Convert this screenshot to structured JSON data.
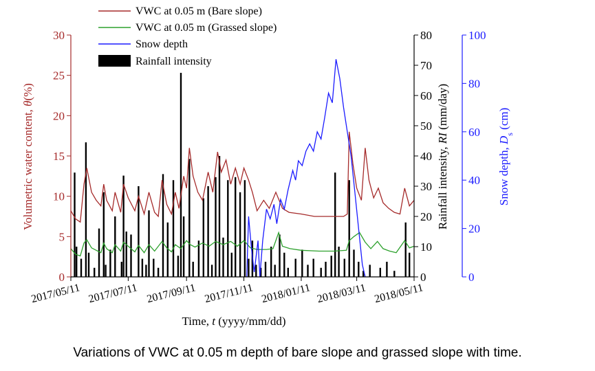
{
  "caption": "Variations of VWC at 0.05 m depth of bare slope and grassed slope with time.",
  "chart_data": {
    "type": "line",
    "xlabel_prefix": "Time, ",
    "xlabel_var": "t",
    "xlabel_suffix": " (yyyy/mm/dd)",
    "x_ticks": [
      "2017/05/11",
      "2017/07/11",
      "2017/09/11",
      "2017/11/11",
      "2018/01/11",
      "2018/03/11",
      "2018/05/11"
    ],
    "x_range": [
      "2017/05/11",
      "2018/05/11"
    ],
    "y_left": {
      "label_prefix": "Volumetric water content, ",
      "label_var": "θ",
      "label_suffix": "(%)",
      "range": [
        0,
        30
      ],
      "ticks": [
        "0",
        "5",
        "10",
        "15",
        "20",
        "25",
        "30"
      ],
      "color": "#a52a2a"
    },
    "y_right1": {
      "label_prefix": "Rainfall intensity, ",
      "label_var": "RI",
      "label_suffix": " (mm/day)",
      "range": [
        0,
        80
      ],
      "ticks": [
        "0",
        "10",
        "20",
        "30",
        "40",
        "50",
        "60",
        "70",
        "80"
      ],
      "color": "#000000"
    },
    "y_right2": {
      "label_prefix": "Snow depth, ",
      "label_var": "D",
      "label_sub": "s",
      "label_suffix": " (cm)",
      "range": [
        0,
        100
      ],
      "ticks": [
        "0",
        "20",
        "40",
        "60",
        "80",
        "100"
      ],
      "color": "#1a1aff"
    },
    "legend_position": "top-left",
    "series": [
      {
        "name": "VWC at 0.05 m (Bare slope)",
        "axis": "left",
        "color": "#a52a2a",
        "points": [
          [
            "2017/05/11",
            8.2
          ],
          [
            "2017/05/16",
            7.2
          ],
          [
            "2017/05/21",
            6.8
          ],
          [
            "2017/05/25",
            11.5
          ],
          [
            "2017/05/28",
            13.5
          ],
          [
            "2017/06/02",
            10.5
          ],
          [
            "2017/06/07",
            9.5
          ],
          [
            "2017/06/12",
            8.8
          ],
          [
            "2017/06/15",
            11.5
          ],
          [
            "2017/06/18",
            9.5
          ],
          [
            "2017/06/24",
            8.2
          ],
          [
            "2017/06/27",
            10.5
          ],
          [
            "2017/07/03",
            8.0
          ],
          [
            "2017/07/06",
            11.5
          ],
          [
            "2017/07/11",
            9.8
          ],
          [
            "2017/07/18",
            8.2
          ],
          [
            "2017/07/22",
            10.0
          ],
          [
            "2017/07/28",
            7.8
          ],
          [
            "2017/08/02",
            10.5
          ],
          [
            "2017/08/08",
            8.0
          ],
          [
            "2017/08/12",
            7.5
          ],
          [
            "2017/08/16",
            12.0
          ],
          [
            "2017/08/21",
            9.0
          ],
          [
            "2017/08/26",
            7.8
          ],
          [
            "2017/08/30",
            10.5
          ],
          [
            "2017/09/03",
            8.5
          ],
          [
            "2017/09/08",
            12.5
          ],
          [
            "2017/09/11",
            11.0
          ],
          [
            "2017/09/14",
            16.0
          ],
          [
            "2017/09/18",
            12.5
          ],
          [
            "2017/09/23",
            10.5
          ],
          [
            "2017/09/28",
            9.5
          ],
          [
            "2017/10/04",
            13.0
          ],
          [
            "2017/10/09",
            10.5
          ],
          [
            "2017/10/14",
            15.5
          ],
          [
            "2017/10/18",
            13.0
          ],
          [
            "2017/10/23",
            14.5
          ],
          [
            "2017/10/28",
            11.5
          ],
          [
            "2017/11/02",
            13.5
          ],
          [
            "2017/11/07",
            11.5
          ],
          [
            "2017/11/11",
            13.5
          ],
          [
            "2017/11/16",
            12.0
          ],
          [
            "2017/11/20",
            10.5
          ],
          [
            "2017/11/25",
            8.2
          ],
          [
            "2017/12/02",
            9.5
          ],
          [
            "2017/12/08",
            8.5
          ],
          [
            "2017/12/15",
            10.5
          ],
          [
            "2017/12/22",
            8.5
          ],
          [
            "2017/12/29",
            8.0
          ],
          [
            "2018/01/11",
            7.8
          ],
          [
            "2018/01/25",
            7.5
          ],
          [
            "2018/02/10",
            7.5
          ],
          [
            "2018/02/25",
            7.5
          ],
          [
            "2018/03/01",
            7.8
          ],
          [
            "2018/03/03",
            18.0
          ],
          [
            "2018/03/07",
            14.0
          ],
          [
            "2018/03/11",
            11.0
          ],
          [
            "2018/03/16",
            9.5
          ],
          [
            "2018/03/20",
            16.0
          ],
          [
            "2018/03/24",
            12.0
          ],
          [
            "2018/03/29",
            9.8
          ],
          [
            "2018/04/03",
            11.0
          ],
          [
            "2018/04/08",
            9.2
          ],
          [
            "2018/04/14",
            8.5
          ],
          [
            "2018/04/20",
            8.0
          ],
          [
            "2018/04/26",
            7.8
          ],
          [
            "2018/05/01",
            11.0
          ],
          [
            "2018/05/06",
            8.8
          ],
          [
            "2018/05/11",
            9.5
          ]
        ]
      },
      {
        "name": "VWC at 0.05 m (Grassed slope)",
        "axis": "left",
        "color": "#2ca02c",
        "points": [
          [
            "2017/05/11",
            3.5
          ],
          [
            "2017/05/16",
            2.8
          ],
          [
            "2017/05/21",
            2.6
          ],
          [
            "2017/05/25",
            4.2
          ],
          [
            "2017/05/28",
            4.6
          ],
          [
            "2017/06/02",
            3.6
          ],
          [
            "2017/06/07",
            3.3
          ],
          [
            "2017/06/12",
            3.0
          ],
          [
            "2017/06/15",
            4.2
          ],
          [
            "2017/06/18",
            3.5
          ],
          [
            "2017/06/24",
            3.0
          ],
          [
            "2017/06/27",
            4.0
          ],
          [
            "2017/07/03",
            3.2
          ],
          [
            "2017/07/06",
            4.3
          ],
          [
            "2017/07/11",
            3.8
          ],
          [
            "2017/07/18",
            3.1
          ],
          [
            "2017/07/22",
            3.9
          ],
          [
            "2017/07/28",
            3.0
          ],
          [
            "2017/08/02",
            4.0
          ],
          [
            "2017/08/08",
            3.2
          ],
          [
            "2017/08/16",
            4.4
          ],
          [
            "2017/08/21",
            3.6
          ],
          [
            "2017/08/26",
            3.1
          ],
          [
            "2017/08/30",
            4.0
          ],
          [
            "2017/09/05",
            3.5
          ],
          [
            "2017/09/11",
            4.5
          ],
          [
            "2017/09/15",
            4.0
          ],
          [
            "2017/09/20",
            3.7
          ],
          [
            "2017/09/28",
            4.2
          ],
          [
            "2017/10/05",
            3.8
          ],
          [
            "2017/10/12",
            4.4
          ],
          [
            "2017/10/20",
            4.0
          ],
          [
            "2017/10/28",
            4.4
          ],
          [
            "2017/11/04",
            3.8
          ],
          [
            "2017/11/11",
            4.5
          ],
          [
            "2017/11/18",
            3.6
          ],
          [
            "2017/11/25",
            3.4
          ],
          [
            "2017/12/05",
            3.4
          ],
          [
            "2017/12/12",
            3.5
          ],
          [
            "2017/12/18",
            5.5
          ],
          [
            "2017/12/22",
            3.8
          ],
          [
            "2017/12/30",
            3.5
          ],
          [
            "2018/01/11",
            3.3
          ],
          [
            "2018/01/30",
            3.2
          ],
          [
            "2018/02/15",
            3.2
          ],
          [
            "2018/02/28",
            3.3
          ],
          [
            "2018/03/03",
            4.5
          ],
          [
            "2018/03/08",
            5.0
          ],
          [
            "2018/03/14",
            5.5
          ],
          [
            "2018/03/20",
            4.3
          ],
          [
            "2018/03/26",
            3.5
          ],
          [
            "2018/04/02",
            4.4
          ],
          [
            "2018/04/08",
            3.5
          ],
          [
            "2018/04/15",
            3.2
          ],
          [
            "2018/04/22",
            3.0
          ],
          [
            "2018/05/01",
            4.5
          ],
          [
            "2018/05/06",
            3.6
          ],
          [
            "2018/05/11",
            3.8
          ]
        ]
      },
      {
        "name": "Snow depth",
        "axis": "right2",
        "color": "#1a1aff",
        "points": [
          [
            "2017/11/14",
            0
          ],
          [
            "2017/11/16",
            25
          ],
          [
            "2017/11/19",
            12
          ],
          [
            "2017/11/22",
            2
          ],
          [
            "2017/11/26",
            15
          ],
          [
            "2017/11/28",
            0
          ],
          [
            "2017/12/01",
            15
          ],
          [
            "2017/12/05",
            28
          ],
          [
            "2017/12/09",
            24
          ],
          [
            "2017/12/13",
            30
          ],
          [
            "2017/12/16",
            22
          ],
          [
            "2017/12/20",
            32
          ],
          [
            "2017/12/24",
            28
          ],
          [
            "2017/12/28",
            36
          ],
          [
            "2018/01/02",
            44
          ],
          [
            "2018/01/05",
            40
          ],
          [
            "2018/01/08",
            48
          ],
          [
            "2018/01/12",
            46
          ],
          [
            "2018/01/16",
            52
          ],
          [
            "2018/01/20",
            55
          ],
          [
            "2018/01/24",
            52
          ],
          [
            "2018/01/28",
            60
          ],
          [
            "2018/02/01",
            57
          ],
          [
            "2018/02/05",
            66
          ],
          [
            "2018/02/09",
            76
          ],
          [
            "2018/02/13",
            72
          ],
          [
            "2018/02/17",
            90
          ],
          [
            "2018/02/21",
            82
          ],
          [
            "2018/02/25",
            70
          ],
          [
            "2018/03/01",
            60
          ],
          [
            "2018/03/05",
            50
          ],
          [
            "2018/03/09",
            35
          ],
          [
            "2018/03/13",
            20
          ],
          [
            "2018/03/17",
            5
          ],
          [
            "2018/03/20",
            0
          ]
        ]
      },
      {
        "name": "Rainfall intensity",
        "axis": "right1",
        "color": "#000000",
        "type": "bar",
        "points": [
          [
            "2017/05/15",
            34.5
          ],
          [
            "2017/05/17",
            10
          ],
          [
            "2017/05/22",
            6
          ],
          [
            "2017/05/27",
            44.5
          ],
          [
            "2017/05/30",
            8
          ],
          [
            "2017/06/05",
            3
          ],
          [
            "2017/06/10",
            16
          ],
          [
            "2017/06/15",
            28
          ],
          [
            "2017/06/17",
            4
          ],
          [
            "2017/06/22",
            9
          ],
          [
            "2017/06/27",
            20
          ],
          [
            "2017/07/04",
            5
          ],
          [
            "2017/07/06",
            33.5
          ],
          [
            "2017/07/09",
            15
          ],
          [
            "2017/07/14",
            14
          ],
          [
            "2017/07/22",
            30
          ],
          [
            "2017/07/26",
            6
          ],
          [
            "2017/07/30",
            4
          ],
          [
            "2017/08/02",
            22
          ],
          [
            "2017/08/07",
            6
          ],
          [
            "2017/08/12",
            3
          ],
          [
            "2017/08/17",
            34
          ],
          [
            "2017/08/22",
            18
          ],
          [
            "2017/08/28",
            32
          ],
          [
            "2017/09/02",
            7
          ],
          [
            "2017/09/05",
            67.5
          ],
          [
            "2017/09/08",
            20
          ],
          [
            "2017/09/14",
            39
          ],
          [
            "2017/09/18",
            5
          ],
          [
            "2017/09/24",
            12
          ],
          [
            "2017/09/29",
            26
          ],
          [
            "2017/10/04",
            30
          ],
          [
            "2017/10/08",
            4
          ],
          [
            "2017/10/12",
            33
          ],
          [
            "2017/10/16",
            40
          ],
          [
            "2017/10/20",
            13
          ],
          [
            "2017/10/25",
            32
          ],
          [
            "2017/10/29",
            8
          ],
          [
            "2017/11/02",
            33
          ],
          [
            "2017/11/07",
            28
          ],
          [
            "2017/11/12",
            32
          ],
          [
            "2017/11/16",
            6
          ],
          [
            "2017/11/20",
            12
          ],
          [
            "2017/11/24",
            4
          ],
          [
            "2017/11/29",
            3
          ],
          [
            "2017/12/04",
            5
          ],
          [
            "2017/12/10",
            10
          ],
          [
            "2017/12/14",
            4
          ],
          [
            "2017/12/19",
            14
          ],
          [
            "2017/12/24",
            8
          ],
          [
            "2017/12/28",
            3
          ],
          [
            "2018/01/05",
            6
          ],
          [
            "2018/01/12",
            9
          ],
          [
            "2018/01/18",
            4
          ],
          [
            "2018/01/24",
            6
          ],
          [
            "2018/02/01",
            3
          ],
          [
            "2018/02/06",
            5
          ],
          [
            "2018/02/12",
            7
          ],
          [
            "2018/02/16",
            34.5
          ],
          [
            "2018/02/20",
            10
          ],
          [
            "2018/02/26",
            6
          ],
          [
            "2018/03/03",
            32
          ],
          [
            "2018/03/08",
            9
          ],
          [
            "2018/03/13",
            5
          ],
          [
            "2018/03/18",
            2
          ],
          [
            "2018/03/25",
            4
          ],
          [
            "2018/04/05",
            3
          ],
          [
            "2018/04/12",
            5
          ],
          [
            "2018/04/20",
            2
          ],
          [
            "2018/05/02",
            18
          ],
          [
            "2018/05/06",
            8
          ]
        ]
      }
    ]
  }
}
